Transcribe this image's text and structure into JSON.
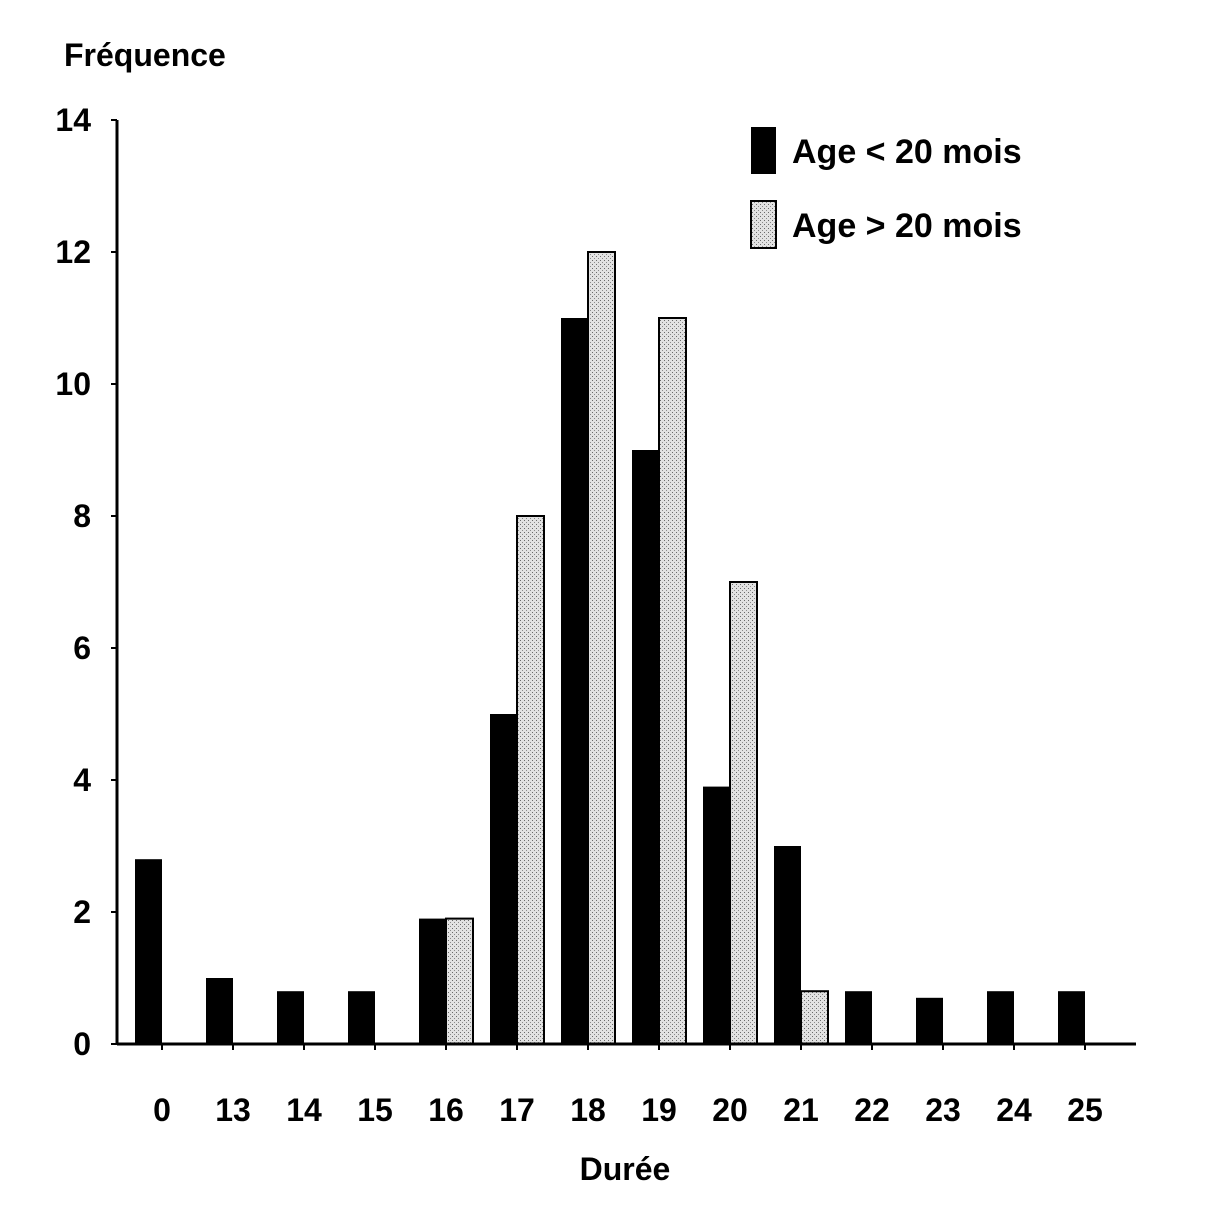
{
  "chart_data": {
    "type": "bar",
    "ylabel": "Fréquence",
    "xlabel": "Durée",
    "categories": [
      "0",
      "13",
      "14",
      "15",
      "16",
      "17",
      "18",
      "19",
      "20",
      "21",
      "22",
      "23",
      "24",
      "25"
    ],
    "series": [
      {
        "name": "Age < 20 mois",
        "color": "#000000",
        "values": [
          2.8,
          1,
          0.8,
          0.8,
          1.9,
          5,
          11,
          9,
          3.9,
          3,
          0.8,
          0.7,
          0.8,
          0.8
        ]
      },
      {
        "name": "Age > 20 mois",
        "color": "#d6d6d6",
        "values": [
          0,
          0,
          0,
          0,
          1.9,
          8,
          12,
          11,
          7,
          0.8,
          0,
          0,
          0,
          0
        ]
      }
    ],
    "ylim": [
      0,
      14
    ],
    "yticks": [
      0,
      2,
      4,
      6,
      8,
      10,
      12,
      14
    ],
    "grid": false,
    "legend_position": "top-right"
  }
}
